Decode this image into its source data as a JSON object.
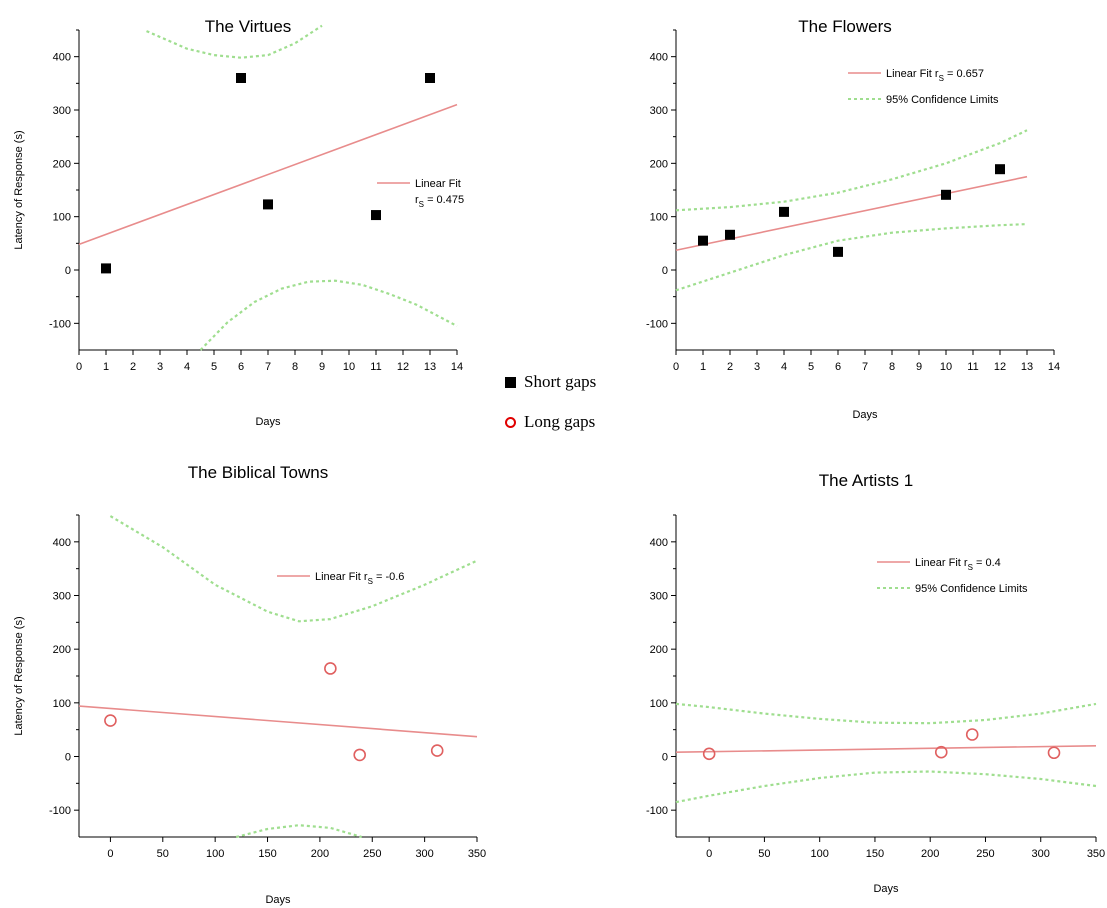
{
  "chart_data": [
    {
      "type": "scatter",
      "title": "The Virtues",
      "xlabel": "Days",
      "ylabel": "Latency of Response (s)",
      "xlim": [
        0,
        14
      ],
      "ylim": [
        -150,
        450
      ],
      "xticks": [
        0,
        1,
        2,
        3,
        4,
        5,
        6,
        7,
        8,
        9,
        10,
        11,
        12,
        13,
        14
      ],
      "yticks": [
        -100,
        0,
        100,
        200,
        300,
        400
      ],
      "marker": "square",
      "points": {
        "x": [
          1,
          6,
          7,
          11,
          13
        ],
        "y": [
          3,
          360,
          123,
          103,
          360
        ]
      },
      "fit": {
        "x": [
          0,
          14
        ],
        "y": [
          48,
          310
        ]
      },
      "ci_upper": {
        "x": [
          2.5,
          4,
          5,
          6,
          7,
          8,
          9
        ],
        "y": [
          448,
          415,
          403,
          398,
          403,
          425,
          458
        ]
      },
      "ci_lower": {
        "x": [
          4.5,
          5.5,
          6.5,
          7.5,
          8.5,
          9.5,
          10.5,
          11.5,
          12.5,
          14
        ],
        "y": [
          -150,
          -98,
          -60,
          -35,
          -22,
          -20,
          -28,
          -45,
          -65,
          -105
        ]
      },
      "legend": {
        "fit_label": "Linear Fit",
        "r_text": "r",
        "r_sub": "S",
        "r_value": " = 0.475",
        "ci_label": ""
      },
      "legend_position": "right"
    },
    {
      "type": "scatter",
      "title": "The Flowers",
      "xlabel": "Days",
      "ylabel": "",
      "xlim": [
        0,
        14
      ],
      "ylim": [
        -150,
        450
      ],
      "xticks": [
        0,
        1,
        2,
        3,
        4,
        5,
        6,
        7,
        8,
        9,
        10,
        11,
        12,
        13,
        14
      ],
      "yticks": [
        -100,
        0,
        100,
        200,
        300,
        400
      ],
      "marker": "square",
      "points": {
        "x": [
          1,
          2,
          4,
          6,
          10,
          12
        ],
        "y": [
          55,
          66,
          109,
          34,
          141,
          189
        ]
      },
      "fit": {
        "x": [
          0,
          13
        ],
        "y": [
          37,
          175
        ]
      },
      "ci_upper": {
        "x": [
          0,
          2,
          4,
          6,
          8,
          10,
          12,
          13
        ],
        "y": [
          112,
          118,
          128,
          145,
          170,
          200,
          238,
          262
        ]
      },
      "ci_lower": {
        "x": [
          0,
          2,
          4,
          6,
          8,
          10,
          12,
          13
        ],
        "y": [
          -38,
          -5,
          28,
          55,
          70,
          78,
          84,
          86
        ]
      },
      "legend": {
        "fit_label": "Linear Fit r",
        "r_text": "",
        "r_sub": "S",
        "r_value": " = 0.657",
        "ci_label": "95% Confidence Limits"
      },
      "legend_position": "top-right"
    },
    {
      "type": "scatter",
      "title": "The Biblical Towns",
      "xlabel": "Days",
      "ylabel": "Latency of Response (s)",
      "xlim": [
        -30,
        350
      ],
      "ylim": [
        -150,
        450
      ],
      "xticks": [
        0,
        50,
        100,
        150,
        200,
        250,
        300,
        350
      ],
      "yticks": [
        -100,
        0,
        100,
        200,
        300,
        400
      ],
      "marker": "circle",
      "points": {
        "x": [
          0,
          210,
          238,
          312
        ],
        "y": [
          67,
          164,
          3,
          11
        ]
      },
      "fit": {
        "x": [
          -30,
          350
        ],
        "y": [
          94,
          37
        ]
      },
      "ci_upper": {
        "x": [
          0,
          50,
          100,
          150,
          180,
          210,
          250,
          300,
          350
        ],
        "y": [
          448,
          390,
          320,
          270,
          252,
          256,
          280,
          320,
          365
        ]
      },
      "ci_lower": {
        "x": [
          120,
          150,
          180,
          210,
          240
        ],
        "y": [
          -150,
          -135,
          -128,
          -133,
          -150
        ]
      },
      "legend": {
        "fit_label": "Linear Fit r",
        "r_text": "",
        "r_sub": "S",
        "r_value": " = -0.6",
        "ci_label": ""
      },
      "legend_position": "top-right"
    },
    {
      "type": "scatter",
      "title": "The Artists 1",
      "xlabel": "Days",
      "ylabel": "",
      "xlim": [
        -30,
        350
      ],
      "ylim": [
        -150,
        450
      ],
      "xticks": [
        0,
        50,
        100,
        150,
        200,
        250,
        300,
        350
      ],
      "yticks": [
        -100,
        0,
        100,
        200,
        300,
        400
      ],
      "marker": "circle",
      "points": {
        "x": [
          0,
          210,
          238,
          312
        ],
        "y": [
          5,
          8,
          41,
          7
        ]
      },
      "fit": {
        "x": [
          -30,
          350
        ],
        "y": [
          8,
          20
        ]
      },
      "ci_upper": {
        "x": [
          -30,
          0,
          50,
          100,
          150,
          200,
          250,
          300,
          350
        ],
        "y": [
          98,
          92,
          80,
          70,
          63,
          62,
          68,
          80,
          98
        ]
      },
      "ci_lower": {
        "x": [
          -30,
          0,
          50,
          100,
          150,
          200,
          250,
          300,
          350
        ],
        "y": [
          -85,
          -73,
          -55,
          -40,
          -30,
          -28,
          -33,
          -42,
          -55
        ]
      },
      "legend": {
        "fit_label": "Linear Fit r",
        "r_text": "",
        "r_sub": "S",
        "r_value": " = 0.4",
        "ci_label": "95% Confidence Limits"
      },
      "legend_position": "top-right"
    }
  ],
  "shared_legend": {
    "short_label": "Short gaps",
    "long_label": "Long gaps"
  },
  "colors": {
    "fit": "#e88c8c",
    "ci": "#9fde8f",
    "square": "#000000",
    "circle": "#e06060",
    "axis": "#000000"
  }
}
